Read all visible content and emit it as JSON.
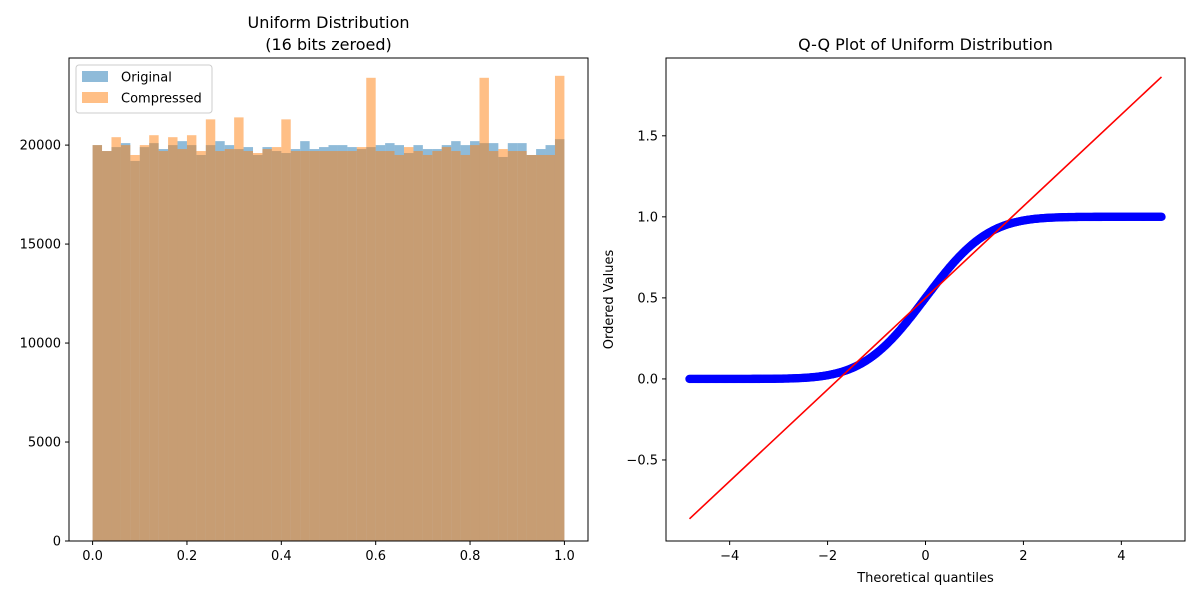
{
  "chart_data": [
    {
      "type": "bar",
      "title_line1": "Uniform Distribution",
      "title_line2": "(16 bits zeroed)",
      "xlabel": "",
      "ylabel": "",
      "xlim": [
        -0.05,
        1.05
      ],
      "ylim": [
        0,
        24400
      ],
      "xticks": [
        0.0,
        0.2,
        0.4,
        0.6,
        0.8,
        1.0
      ],
      "xtick_labels": [
        "0.0",
        "0.2",
        "0.4",
        "0.6",
        "0.8",
        "1.0"
      ],
      "yticks": [
        0,
        5000,
        10000,
        15000,
        20000
      ],
      "ytick_labels": [
        "0",
        "5000",
        "10000",
        "15000",
        "20000"
      ],
      "legend_position": "upper-left",
      "bin_start": 0.0,
      "bin_width": 0.02,
      "series": [
        {
          "name": "Original",
          "color": "#1f77b4",
          "opacity": 0.5,
          "values": [
            20000,
            19700,
            19900,
            20100,
            19200,
            19900,
            20100,
            19800,
            20000,
            20200,
            20000,
            19500,
            20000,
            20200,
            20000,
            19800,
            19900,
            19500,
            19900,
            19700,
            19600,
            19800,
            20200,
            19800,
            19900,
            20000,
            20000,
            19900,
            19800,
            19900,
            20000,
            20100,
            20000,
            19600,
            20000,
            19800,
            19800,
            20000,
            20200,
            20000,
            20200,
            20100,
            20100,
            19400,
            20100,
            20100,
            19500,
            19800,
            20000,
            20300
          ]
        },
        {
          "name": "Compressed",
          "color": "#ff7f0e",
          "opacity": 0.5,
          "values": [
            20000,
            19700,
            20400,
            20000,
            19500,
            20000,
            20500,
            19700,
            20400,
            19800,
            20500,
            19700,
            21300,
            19700,
            19800,
            21400,
            19700,
            19600,
            19800,
            19900,
            21300,
            19700,
            19700,
            19700,
            19700,
            19700,
            19700,
            19700,
            19900,
            23400,
            19700,
            19700,
            19500,
            19900,
            19700,
            19500,
            19700,
            19900,
            19700,
            19500,
            20000,
            23400,
            19700,
            19800,
            19700,
            19700,
            19500,
            19500,
            19500,
            23500
          ]
        }
      ]
    },
    {
      "type": "scatter",
      "title": "Q-Q Plot of Uniform Distribution",
      "xlabel": "Theoretical quantiles",
      "ylabel": "Ordered Values",
      "xlim": [
        -5.3,
        5.3
      ],
      "ylim": [
        -1.0,
        1.98
      ],
      "xticks": [
        -4,
        -2,
        0,
        2,
        4
      ],
      "xtick_labels": [
        "−4",
        "−2",
        "0",
        "2",
        "4"
      ],
      "yticks": [
        -0.5,
        0.0,
        0.5,
        1.0,
        1.5
      ],
      "ytick_labels": [
        "−0.5",
        "0.0",
        "0.5",
        "1.0",
        "1.5"
      ],
      "points_color": "#0000ff",
      "fit_line_color": "#ff0000",
      "theoretical_range": [
        -4.82,
        4.82
      ],
      "fit_line": {
        "slope": 0.2828,
        "intercept": 0.5
      }
    }
  ]
}
